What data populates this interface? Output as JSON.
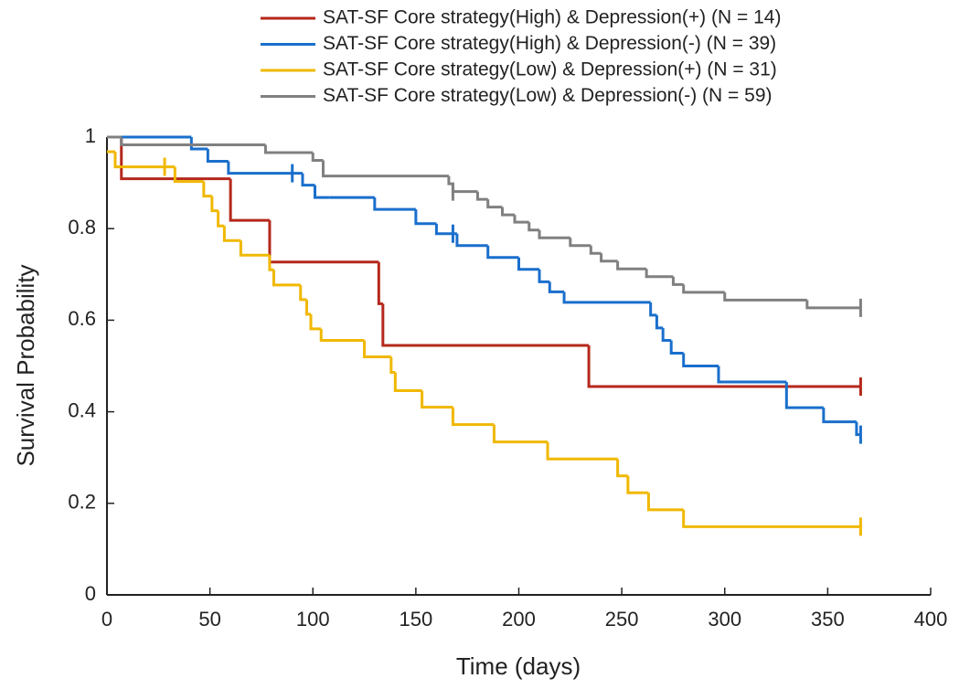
{
  "chart_data": {
    "type": "step",
    "x_label": "Time (days)",
    "y_label": "Survival Probability",
    "xlim": [
      0,
      400
    ],
    "xticks": [
      0,
      50,
      100,
      150,
      200,
      250,
      300,
      350,
      400
    ],
    "ylim": [
      0,
      1
    ],
    "yticks": [
      0,
      0.2,
      0.4,
      0.6,
      0.8,
      1
    ],
    "series": [
      {
        "name": "SAT-SF Core strategy(High) & Depression(+) (N = 14)",
        "color": "#b5281c",
        "x": [
          0,
          7,
          60,
          79,
          132,
          134,
          234,
          366
        ],
        "values": [
          1,
          0.909,
          0.818,
          0.727,
          0.636,
          0.545,
          0.455,
          0.455
        ],
        "censored_x": [
          366
        ]
      },
      {
        "name": "SAT-SF Core strategy(High) & Depression(-) (N = 39)",
        "color": "#1a6fcc",
        "x": [
          0,
          41,
          49,
          59,
          95,
          101,
          108,
          130,
          150,
          160,
          170,
          185,
          200,
          210,
          215,
          222,
          264,
          267,
          270,
          274,
          280,
          297,
          330,
          348,
          364,
          366
        ],
        "values": [
          1,
          0.974,
          0.947,
          0.921,
          0.895,
          0.868,
          0.868,
          0.842,
          0.811,
          0.789,
          0.763,
          0.737,
          0.711,
          0.684,
          0.662,
          0.639,
          0.611,
          0.583,
          0.556,
          0.528,
          0.5,
          0.465,
          0.409,
          0.378,
          0.35,
          0.35
        ],
        "censored_x": [
          90,
          168,
          366
        ]
      },
      {
        "name": "SAT-SF Core strategy(Low) & Depression(+) (N = 31)",
        "color": "#f0b800",
        "x": [
          0,
          4,
          33,
          47,
          51,
          54,
          57,
          65,
          79,
          81,
          94,
          97,
          99,
          104,
          125,
          138,
          140,
          153,
          168,
          188,
          214,
          248,
          253,
          263,
          280,
          366
        ],
        "values": [
          0.968,
          0.935,
          0.903,
          0.871,
          0.839,
          0.806,
          0.774,
          0.742,
          0.71,
          0.677,
          0.645,
          0.613,
          0.581,
          0.556,
          0.52,
          0.486,
          0.446,
          0.41,
          0.372,
          0.334,
          0.297,
          0.26,
          0.223,
          0.186,
          0.149,
          0.149
        ],
        "censored_x": [
          28,
          366
        ]
      },
      {
        "name": "SAT-SF Core strategy(Low) & Depression(-) (N = 59)",
        "color": "#808080",
        "x": [
          0,
          7,
          77,
          100,
          105,
          166,
          168,
          180,
          185,
          192,
          198,
          205,
          210,
          225,
          235,
          240,
          248,
          262,
          275,
          280,
          300,
          340,
          366
        ],
        "values": [
          1,
          0.983,
          0.966,
          0.949,
          0.915,
          0.898,
          0.881,
          0.864,
          0.847,
          0.83,
          0.814,
          0.797,
          0.78,
          0.763,
          0.746,
          0.729,
          0.712,
          0.695,
          0.678,
          0.661,
          0.644,
          0.627,
          0.627
        ],
        "censored_x": [
          168,
          366
        ]
      }
    ]
  }
}
